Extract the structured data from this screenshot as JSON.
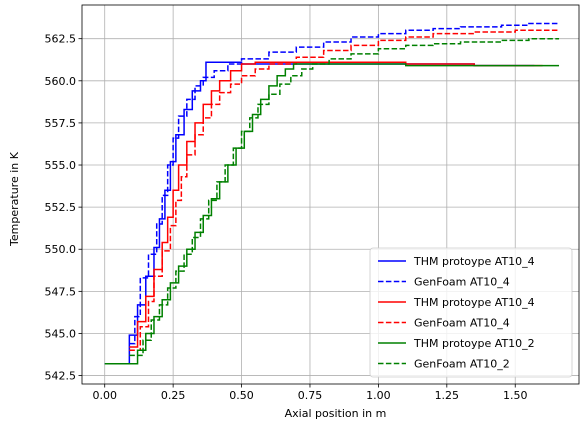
{
  "chart_data": {
    "type": "line",
    "xlabel": "Axial position in m",
    "ylabel": "Temperature in K",
    "xlim": [
      -0.083,
      1.733
    ],
    "ylim": [
      542.0,
      564.5
    ],
    "x_ticks": [
      0.0,
      0.25,
      0.5,
      0.75,
      1.0,
      1.25,
      1.5
    ],
    "y_ticks": [
      542.5,
      545.0,
      547.5,
      550.0,
      552.5,
      555.0,
      557.5,
      560.0,
      562.5
    ],
    "x_tick_labels": [
      "0.00",
      "0.25",
      "0.50",
      "0.75",
      "1.00",
      "1.25",
      "1.50"
    ],
    "y_tick_labels": [
      "542.5",
      "545.0",
      "547.5",
      "550.0",
      "552.5",
      "555.0",
      "557.5",
      "560.0",
      "562.5"
    ],
    "grid": true,
    "legend_position": "lower-right",
    "series": [
      {
        "name": "THM protoype AT10_4",
        "color": "#0000ff",
        "style": "solid",
        "step": true,
        "points": [
          [
            0.0,
            543.2
          ],
          [
            0.09,
            543.2
          ],
          [
            0.09,
            544.9
          ],
          [
            0.12,
            544.9
          ],
          [
            0.12,
            546.7
          ],
          [
            0.15,
            546.7
          ],
          [
            0.15,
            548.4
          ],
          [
            0.18,
            548.4
          ],
          [
            0.18,
            550.1
          ],
          [
            0.2,
            550.1
          ],
          [
            0.2,
            551.8
          ],
          [
            0.22,
            551.8
          ],
          [
            0.22,
            553.5
          ],
          [
            0.24,
            553.5
          ],
          [
            0.24,
            555.2
          ],
          [
            0.26,
            555.2
          ],
          [
            0.26,
            556.8
          ],
          [
            0.29,
            556.8
          ],
          [
            0.29,
            558.3
          ],
          [
            0.32,
            558.3
          ],
          [
            0.32,
            559.4
          ],
          [
            0.35,
            559.4
          ],
          [
            0.35,
            560.0
          ],
          [
            0.37,
            560.0
          ],
          [
            0.37,
            561.1
          ],
          [
            0.5,
            561.1
          ],
          [
            0.5,
            561.0
          ],
          [
            0.75,
            561.0
          ],
          [
            1.35,
            561.0
          ],
          [
            1.35,
            560.9
          ],
          [
            1.57,
            560.9
          ]
        ]
      },
      {
        "name": "GenFoam AT10_4",
        "color": "#0000ff",
        "style": "dashed",
        "step": true,
        "points": [
          [
            0.09,
            544.4
          ],
          [
            0.11,
            544.4
          ],
          [
            0.11,
            546.0
          ],
          [
            0.13,
            546.0
          ],
          [
            0.13,
            548.3
          ],
          [
            0.16,
            548.3
          ],
          [
            0.16,
            549.7
          ],
          [
            0.19,
            549.7
          ],
          [
            0.19,
            551.5
          ],
          [
            0.21,
            551.5
          ],
          [
            0.21,
            553.2
          ],
          [
            0.23,
            553.2
          ],
          [
            0.23,
            555.0
          ],
          [
            0.25,
            555.0
          ],
          [
            0.25,
            556.6
          ],
          [
            0.27,
            556.6
          ],
          [
            0.27,
            557.9
          ],
          [
            0.3,
            557.9
          ],
          [
            0.3,
            558.9
          ],
          [
            0.33,
            558.9
          ],
          [
            0.33,
            559.7
          ],
          [
            0.36,
            559.7
          ],
          [
            0.36,
            560.2
          ],
          [
            0.4,
            560.2
          ],
          [
            0.4,
            560.6
          ],
          [
            0.45,
            560.6
          ],
          [
            0.45,
            561.0
          ],
          [
            0.5,
            561.0
          ],
          [
            0.5,
            561.3
          ],
          [
            0.6,
            561.3
          ],
          [
            0.6,
            561.7
          ],
          [
            0.7,
            561.7
          ],
          [
            0.7,
            562.0
          ],
          [
            0.8,
            562.0
          ],
          [
            0.8,
            562.3
          ],
          [
            0.9,
            562.3
          ],
          [
            0.9,
            562.6
          ],
          [
            1.0,
            562.6
          ],
          [
            1.0,
            562.8
          ],
          [
            1.1,
            562.8
          ],
          [
            1.1,
            563.0
          ],
          [
            1.2,
            563.0
          ],
          [
            1.2,
            563.1
          ],
          [
            1.3,
            563.1
          ],
          [
            1.3,
            563.2
          ],
          [
            1.45,
            563.2
          ],
          [
            1.45,
            563.3
          ],
          [
            1.55,
            563.3
          ],
          [
            1.55,
            563.4
          ],
          [
            1.66,
            563.4
          ]
        ]
      },
      {
        "name": "THM protoype AT10_4",
        "color": "#ff0000",
        "style": "solid",
        "step": true,
        "points": [
          [
            0.09,
            544.2
          ],
          [
            0.12,
            544.2
          ],
          [
            0.12,
            545.7
          ],
          [
            0.15,
            545.7
          ],
          [
            0.15,
            547.2
          ],
          [
            0.18,
            547.2
          ],
          [
            0.18,
            548.8
          ],
          [
            0.21,
            548.8
          ],
          [
            0.21,
            550.4
          ],
          [
            0.23,
            550.4
          ],
          [
            0.23,
            551.9
          ],
          [
            0.25,
            551.9
          ],
          [
            0.25,
            553.5
          ],
          [
            0.27,
            553.5
          ],
          [
            0.27,
            555.0
          ],
          [
            0.3,
            555.0
          ],
          [
            0.3,
            556.4
          ],
          [
            0.33,
            556.4
          ],
          [
            0.33,
            557.5
          ],
          [
            0.36,
            557.5
          ],
          [
            0.36,
            558.6
          ],
          [
            0.39,
            558.6
          ],
          [
            0.39,
            559.4
          ],
          [
            0.42,
            559.4
          ],
          [
            0.42,
            560.0
          ],
          [
            0.46,
            560.0
          ],
          [
            0.46,
            560.6
          ],
          [
            0.5,
            560.6
          ],
          [
            0.5,
            561.0
          ],
          [
            0.55,
            561.0
          ],
          [
            0.55,
            561.1
          ],
          [
            1.1,
            561.1
          ],
          [
            1.1,
            561.0
          ],
          [
            1.35,
            561.0
          ],
          [
            1.35,
            560.9
          ],
          [
            1.6,
            560.9
          ]
        ]
      },
      {
        "name": "GenFoam AT10_4",
        "color": "#ff0000",
        "style": "dashed",
        "step": true,
        "points": [
          [
            0.09,
            544.0
          ],
          [
            0.13,
            544.0
          ],
          [
            0.13,
            545.4
          ],
          [
            0.16,
            545.4
          ],
          [
            0.16,
            546.9
          ],
          [
            0.18,
            546.9
          ],
          [
            0.18,
            548.4
          ],
          [
            0.21,
            548.4
          ],
          [
            0.21,
            549.9
          ],
          [
            0.24,
            549.9
          ],
          [
            0.24,
            551.4
          ],
          [
            0.26,
            551.4
          ],
          [
            0.26,
            552.9
          ],
          [
            0.28,
            552.9
          ],
          [
            0.28,
            554.3
          ],
          [
            0.3,
            554.3
          ],
          [
            0.3,
            555.6
          ],
          [
            0.33,
            555.6
          ],
          [
            0.33,
            556.8
          ],
          [
            0.36,
            556.8
          ],
          [
            0.36,
            557.8
          ],
          [
            0.39,
            557.8
          ],
          [
            0.39,
            558.6
          ],
          [
            0.42,
            558.6
          ],
          [
            0.42,
            559.3
          ],
          [
            0.46,
            559.3
          ],
          [
            0.46,
            559.8
          ],
          [
            0.5,
            559.8
          ],
          [
            0.5,
            560.3
          ],
          [
            0.55,
            560.3
          ],
          [
            0.55,
            560.7
          ],
          [
            0.6,
            560.7
          ],
          [
            0.6,
            561.0
          ],
          [
            0.7,
            561.0
          ],
          [
            0.7,
            561.4
          ],
          [
            0.8,
            561.4
          ],
          [
            0.8,
            561.8
          ],
          [
            0.9,
            561.8
          ],
          [
            0.9,
            562.1
          ],
          [
            1.0,
            562.1
          ],
          [
            1.0,
            562.4
          ],
          [
            1.1,
            562.4
          ],
          [
            1.1,
            562.6
          ],
          [
            1.2,
            562.6
          ],
          [
            1.2,
            562.8
          ],
          [
            1.35,
            562.8
          ],
          [
            1.35,
            562.9
          ],
          [
            1.5,
            562.9
          ],
          [
            1.5,
            563.0
          ],
          [
            1.66,
            563.0
          ]
        ]
      },
      {
        "name": "THM protoype AT10_2",
        "color": "#008000",
        "style": "solid",
        "step": true,
        "points": [
          [
            0.0,
            543.2
          ],
          [
            0.12,
            543.2
          ],
          [
            0.12,
            544.0
          ],
          [
            0.15,
            544.0
          ],
          [
            0.15,
            545.0
          ],
          [
            0.18,
            545.0
          ],
          [
            0.18,
            546.0
          ],
          [
            0.21,
            546.0
          ],
          [
            0.21,
            547.0
          ],
          [
            0.24,
            547.0
          ],
          [
            0.24,
            548.0
          ],
          [
            0.27,
            548.0
          ],
          [
            0.27,
            549.0
          ],
          [
            0.3,
            549.0
          ],
          [
            0.3,
            550.0
          ],
          [
            0.33,
            550.0
          ],
          [
            0.33,
            551.0
          ],
          [
            0.36,
            551.0
          ],
          [
            0.36,
            552.0
          ],
          [
            0.39,
            552.0
          ],
          [
            0.39,
            553.0
          ],
          [
            0.42,
            553.0
          ],
          [
            0.42,
            554.0
          ],
          [
            0.45,
            554.0
          ],
          [
            0.45,
            555.0
          ],
          [
            0.48,
            555.0
          ],
          [
            0.48,
            556.0
          ],
          [
            0.51,
            556.0
          ],
          [
            0.51,
            557.0
          ],
          [
            0.54,
            557.0
          ],
          [
            0.54,
            558.0
          ],
          [
            0.57,
            558.0
          ],
          [
            0.57,
            558.9
          ],
          [
            0.6,
            558.9
          ],
          [
            0.6,
            559.7
          ],
          [
            0.63,
            559.7
          ],
          [
            0.63,
            560.3
          ],
          [
            0.66,
            560.3
          ],
          [
            0.66,
            560.7
          ],
          [
            0.69,
            560.7
          ],
          [
            0.69,
            561.0
          ],
          [
            1.1,
            561.0
          ],
          [
            1.1,
            560.9
          ],
          [
            1.66,
            560.9
          ]
        ]
      },
      {
        "name": "GenFoam AT10_2",
        "color": "#008000",
        "style": "dashed",
        "step": true,
        "points": [
          [
            0.09,
            543.7
          ],
          [
            0.14,
            543.7
          ],
          [
            0.14,
            544.6
          ],
          [
            0.17,
            544.6
          ],
          [
            0.17,
            545.8
          ],
          [
            0.2,
            545.8
          ],
          [
            0.2,
            546.7
          ],
          [
            0.23,
            546.7
          ],
          [
            0.23,
            547.7
          ],
          [
            0.26,
            547.7
          ],
          [
            0.26,
            548.7
          ],
          [
            0.29,
            548.7
          ],
          [
            0.29,
            549.7
          ],
          [
            0.32,
            549.7
          ],
          [
            0.32,
            550.7
          ],
          [
            0.35,
            550.7
          ],
          [
            0.35,
            551.8
          ],
          [
            0.38,
            551.8
          ],
          [
            0.38,
            552.9
          ],
          [
            0.41,
            552.9
          ],
          [
            0.41,
            554.0
          ],
          [
            0.44,
            554.0
          ],
          [
            0.44,
            555.0
          ],
          [
            0.47,
            555.0
          ],
          [
            0.47,
            556.0
          ],
          [
            0.5,
            556.0
          ],
          [
            0.5,
            557.0
          ],
          [
            0.53,
            557.0
          ],
          [
            0.53,
            557.8
          ],
          [
            0.56,
            557.8
          ],
          [
            0.56,
            558.6
          ],
          [
            0.6,
            558.6
          ],
          [
            0.6,
            559.2
          ],
          [
            0.64,
            559.2
          ],
          [
            0.64,
            559.8
          ],
          [
            0.68,
            559.8
          ],
          [
            0.68,
            560.3
          ],
          [
            0.72,
            560.3
          ],
          [
            0.72,
            560.7
          ],
          [
            0.76,
            560.7
          ],
          [
            0.76,
            561.0
          ],
          [
            0.82,
            561.0
          ],
          [
            0.82,
            561.3
          ],
          [
            0.9,
            561.3
          ],
          [
            0.9,
            561.6
          ],
          [
            1.0,
            561.6
          ],
          [
            1.0,
            561.9
          ],
          [
            1.1,
            561.9
          ],
          [
            1.1,
            562.1
          ],
          [
            1.2,
            562.1
          ],
          [
            1.2,
            562.2
          ],
          [
            1.3,
            562.2
          ],
          [
            1.3,
            562.3
          ],
          [
            1.45,
            562.3
          ],
          [
            1.45,
            562.4
          ],
          [
            1.55,
            562.4
          ],
          [
            1.55,
            562.5
          ],
          [
            1.66,
            562.5
          ]
        ]
      }
    ]
  }
}
